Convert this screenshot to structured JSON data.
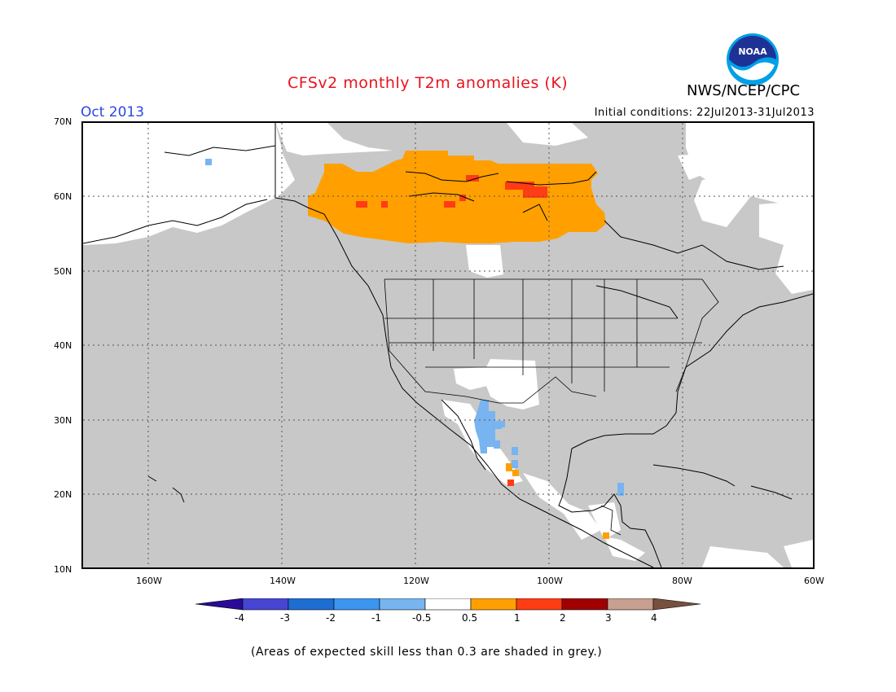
{
  "header": {
    "title": "CFSv2 monthly T2m anomalies (K)",
    "agency": "NWS/NCEP/CPC",
    "logo_text": "NOAA",
    "month": "Oct 2013",
    "initial_conditions": "Initial conditions: 22Jul2013-31Jul2013"
  },
  "map": {
    "lat_labels": [
      "70N",
      "60N",
      "50N",
      "40N",
      "30N",
      "20N",
      "10N"
    ],
    "lon_labels": [
      "160W",
      "140W",
      "120W",
      "100W",
      "80W",
      "60W"
    ],
    "colors": {
      "low_skill": "#c8c8c8",
      "neutral": "#ffffff",
      "warm_0_5_1": "#ffa000",
      "warm_1_2": "#ff3c14",
      "cool_-1_-0_5": "#78b4f0"
    }
  },
  "colorbar": {
    "labels": [
      "-4",
      "-3",
      "-2",
      "-1",
      "-0.5",
      "0.5",
      "1",
      "2",
      "3",
      "4"
    ],
    "colors": [
      "#2a0a96",
      "#4646d2",
      "#1e6ed2",
      "#3c96f0",
      "#78b4f0",
      "#ffffff",
      "#ffa000",
      "#ff3c14",
      "#a00000",
      "#c8a090",
      "#785040"
    ]
  },
  "footer": {
    "note": "(Areas of expected skill less than 0.3 are shaded in grey.)"
  }
}
